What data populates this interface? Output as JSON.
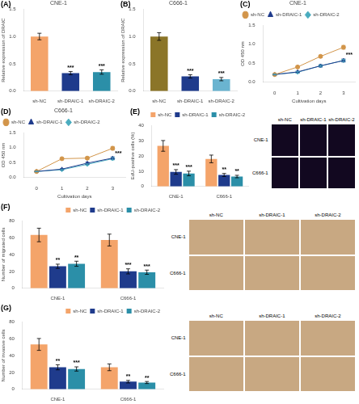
{
  "chart_data": [
    {
      "type": "bar",
      "panel_label": "(A)",
      "title": "CNE-1",
      "categories": [
        "sh-NC",
        "sh-DRAIC-1",
        "sh-DRAIC-2"
      ],
      "values": [
        1.0,
        0.33,
        0.35
      ],
      "errors": [
        0.06,
        0.03,
        0.04
      ],
      "annotations": [
        null,
        "***",
        "***"
      ],
      "colors": [
        "#F4A46A",
        "#1F3B8C",
        "#2B8FA8"
      ],
      "ylabel": "Relative expression of DRAIC",
      "ylim": [
        0.0,
        1.5
      ],
      "yticks": [
        {
          "value": 0.0,
          "label": "0.0"
        },
        0.5,
        {
          "value": 1.0,
          "label": "1.0"
        },
        1.5
      ],
      "grid": false
    },
    {
      "type": "bar",
      "panel_label": "(B)",
      "title": "C666-1",
      "categories": [
        "sh-NC",
        "sh-DRAIC-1",
        "sh-DRAIC-2"
      ],
      "values": [
        1.0,
        0.27,
        0.22
      ],
      "errors": [
        0.07,
        0.03,
        0.03
      ],
      "annotations": [
        null,
        "***",
        "***"
      ],
      "colors": [
        "#8B7528",
        "#1F3B8C",
        "#6AB4D0"
      ],
      "ylabel": "Relative expression of DRAIC",
      "ylim": [
        0.0,
        1.5
      ],
      "yticks": [
        {
          "value": 0.0,
          "label": "0.0"
        },
        0.5,
        {
          "value": 1.0,
          "label": "1.0"
        },
        1.5
      ],
      "grid": false
    },
    {
      "type": "line",
      "panel_label": "(C)",
      "title": "CNE-1",
      "xlabel": "Cultivation days",
      "ylabel": "OD 450 nm",
      "x": [
        0,
        1,
        2,
        3
      ],
      "xlim": [
        -0.5,
        3.5
      ],
      "xticks": [
        0,
        1,
        2,
        3
      ],
      "ylim": [
        0.0,
        1.5
      ],
      "yticks": [
        {
          "value": 0.0,
          "label": "0.0"
        },
        0.5,
        {
          "value": 1.0,
          "label": "1.0"
        },
        1.5
      ],
      "legend": "upper left",
      "grid": false,
      "series": [
        {
          "name": "sh-NC",
          "color": "#D2954A",
          "marker": "circle",
          "values": [
            0.2,
            0.4,
            0.68,
            0.92
          ],
          "errors": [
            0.01,
            0.02,
            0.03,
            0.05
          ]
        },
        {
          "name": "sh-DRAIC-1",
          "color": "#1F3B8C",
          "marker": "triangle",
          "values": [
            0.2,
            0.27,
            0.43,
            0.57
          ],
          "errors": [
            0.01,
            0.02,
            0.03,
            0.04
          ],
          "annotations": [
            null,
            null,
            null,
            "***"
          ]
        },
        {
          "name": "sh-DRAIC-2",
          "color": "#4AACBF",
          "marker": "diamond",
          "values": [
            0.2,
            0.26,
            0.43,
            0.57
          ],
          "errors": [
            0.01,
            0.02,
            0.02,
            0.03
          ]
        }
      ]
    },
    {
      "type": "line",
      "panel_label": "(D)",
      "title": "C666-1",
      "xlabel": "Cultivation days",
      "ylabel": "OD 450 nm",
      "x": [
        0,
        1,
        2,
        3
      ],
      "xlim": [
        -0.5,
        3.5
      ],
      "xticks": [
        0,
        1,
        2,
        3
      ],
      "ylim": [
        0.0,
        1.5
      ],
      "yticks": [
        {
          "value": 0.0,
          "label": "0.0"
        },
        0.5,
        {
          "value": 1.0,
          "label": "1.0"
        },
        1.5
      ],
      "legend": "upper left",
      "grid": false,
      "series": [
        {
          "name": "sh-NC",
          "color": "#D2954A",
          "marker": "circle",
          "values": [
            0.2,
            0.63,
            0.65,
            0.98
          ],
          "errors": [
            0.01,
            0.03,
            0.04,
            0.06
          ]
        },
        {
          "name": "sh-DRAIC-1",
          "color": "#1F3B8C",
          "marker": "triangle",
          "values": [
            0.2,
            0.28,
            0.48,
            0.65
          ],
          "errors": [
            0.01,
            0.02,
            0.03,
            0.04
          ],
          "annotations": [
            null,
            null,
            null,
            "***"
          ]
        },
        {
          "name": "sh-DRAIC-2",
          "color": "#4AACBF",
          "marker": "diamond",
          "values": [
            0.2,
            0.26,
            0.44,
            0.63
          ],
          "errors": [
            0.01,
            0.02,
            0.02,
            0.04
          ]
        }
      ]
    },
    {
      "type": "bar",
      "panel_label": "(E)",
      "categories": [
        "CNE-1",
        "C666-1"
      ],
      "ylabel": "EdU-positive cells (%)",
      "ylim": [
        0,
        40
      ],
      "yticks": [
        0,
        10,
        20,
        30,
        40
      ],
      "legend": "upper right",
      "grid": false,
      "series": [
        {
          "name": "sh-NC",
          "color": "#F4A46A",
          "values": [
            26.5,
            18.0
          ],
          "errors": [
            3.5,
            2.5
          ]
        },
        {
          "name": "sh-DRAIC-1",
          "color": "#1F3B8C",
          "values": [
            9.5,
            7.5
          ],
          "errors": [
            1.5,
            1.0
          ],
          "annotations": [
            "***",
            "**"
          ]
        },
        {
          "name": "sh-DRAIC-2",
          "color": "#2B8FA8",
          "values": [
            8.5,
            6.5
          ],
          "errors": [
            1.5,
            0.8
          ],
          "annotations": [
            "***",
            "**"
          ]
        }
      ]
    },
    {
      "type": "image_grid",
      "categories": [
        "sh-NC",
        "sh-DRAIC-1",
        "sh-DRAIC-2"
      ],
      "rows": [
        "CNE-1",
        "C666-1"
      ],
      "color": "#120820"
    },
    {
      "type": "bar",
      "panel_label": "(F)",
      "categories": [
        "CNE-1",
        "C666-1"
      ],
      "ylabel": "Number of migrated cells",
      "ylim": [
        0,
        80
      ],
      "yticks": [
        0,
        20,
        40,
        60,
        80
      ],
      "legend": "upper right",
      "grid": false,
      "series": [
        {
          "name": "sh-NC",
          "color": "#F4A46A",
          "values": [
            63.0,
            57.0
          ],
          "errors": [
            8.0,
            7.0
          ]
        },
        {
          "name": "sh-DRAIC-1",
          "color": "#1F3B8C",
          "values": [
            26.0,
            20.0
          ],
          "errors": [
            2.5,
            3.0
          ],
          "annotations": [
            "**",
            "***"
          ]
        },
        {
          "name": "sh-DRAIC-2",
          "color": "#2B8FA8",
          "values": [
            29.0,
            19.0
          ],
          "errors": [
            3.0,
            2.5
          ],
          "annotations": [
            "**",
            "***"
          ]
        }
      ]
    },
    {
      "type": "image_grid",
      "categories": [
        "sh-NC",
        "sh-DRAIC-1",
        "sh-DRAIC-2"
      ],
      "rows": [
        "CNE-1",
        "C666-1"
      ],
      "color": "#C8A882"
    },
    {
      "type": "bar",
      "panel_label": "(G)",
      "categories": [
        "CNE-1",
        "C666-1"
      ],
      "ylabel": "Number of invasive cells",
      "ylim": [
        0,
        80
      ],
      "yticks": [
        0,
        20,
        40,
        60,
        80
      ],
      "legend": "upper right",
      "grid": false,
      "series": [
        {
          "name": "sh-NC",
          "color": "#F4A46A",
          "values": [
            53.0,
            26.0
          ],
          "errors": [
            7.0,
            4.0
          ]
        },
        {
          "name": "sh-DRAIC-1",
          "color": "#1F3B8C",
          "values": [
            26.0,
            9.0
          ],
          "errors": [
            3.0,
            1.5
          ],
          "annotations": [
            "**",
            "**"
          ]
        },
        {
          "name": "sh-DRAIC-2",
          "color": "#2B8FA8",
          "values": [
            24.0,
            8.0
          ],
          "errors": [
            2.5,
            1.2
          ],
          "annotations": [
            "***",
            "**"
          ]
        }
      ]
    },
    {
      "type": "image_grid",
      "categories": [
        "sh-NC",
        "sh-DRAIC-1",
        "sh-DRAIC-2"
      ],
      "rows": [
        "CNE-1",
        "C666-1"
      ],
      "color": "#C8A882"
    }
  ]
}
